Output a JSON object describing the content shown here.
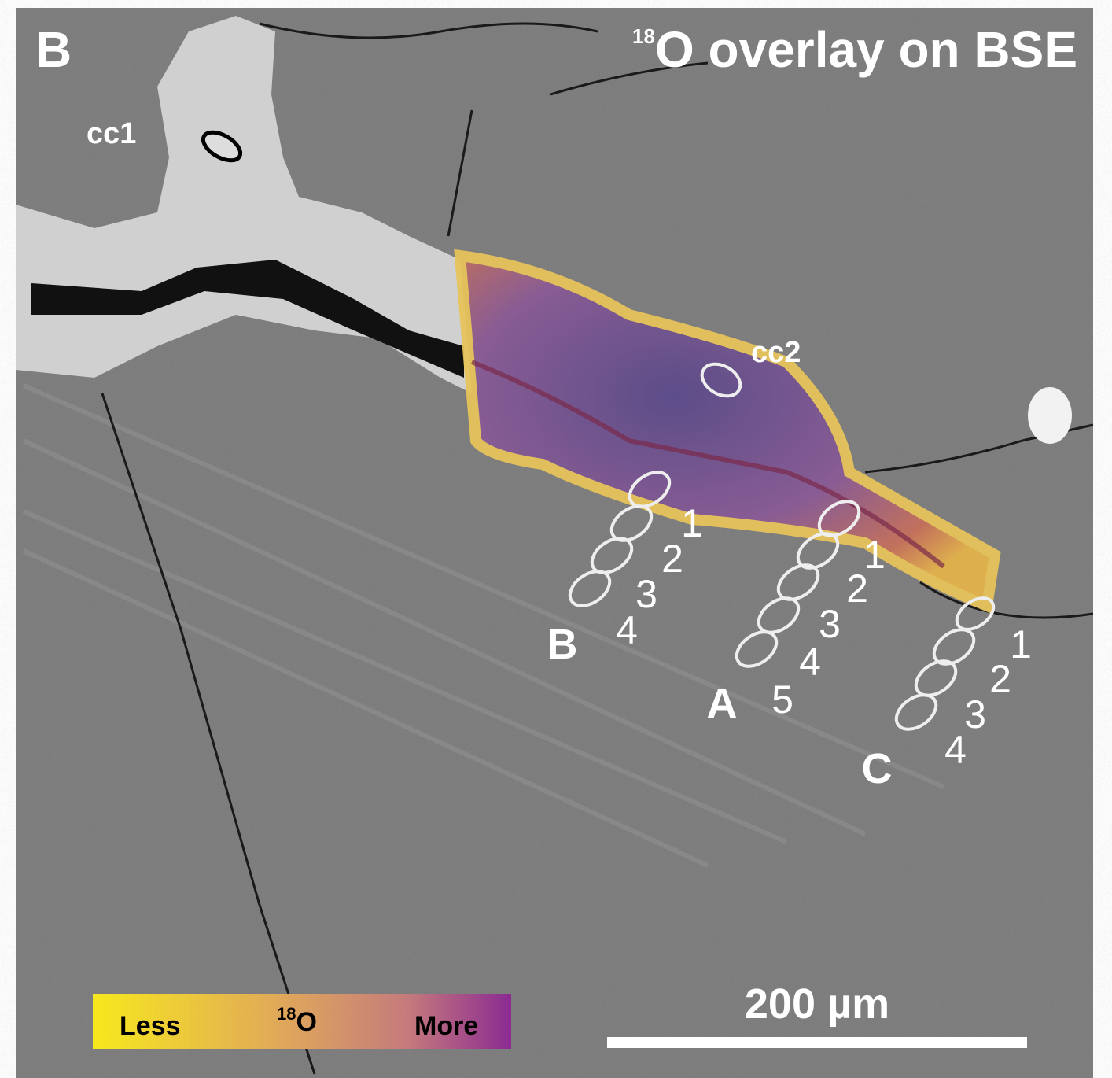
{
  "panel_label": "B",
  "title": {
    "superscript": "18",
    "text": "O overlay on BSE"
  },
  "spots": [
    {
      "label": "cc1"
    },
    {
      "label": "cc2"
    }
  ],
  "transects": [
    {
      "label": "B",
      "points": [
        "1",
        "2",
        "3",
        "4"
      ]
    },
    {
      "label": "A",
      "points": [
        "1",
        "2",
        "3",
        "4",
        "5"
      ]
    },
    {
      "label": "C",
      "points": [
        "1",
        "2",
        "3",
        "4"
      ]
    }
  ],
  "legend": {
    "low": "Less",
    "mid_superscript": "18",
    "mid": "O",
    "high": "More"
  },
  "scale_bar": {
    "label": "200 µm"
  }
}
